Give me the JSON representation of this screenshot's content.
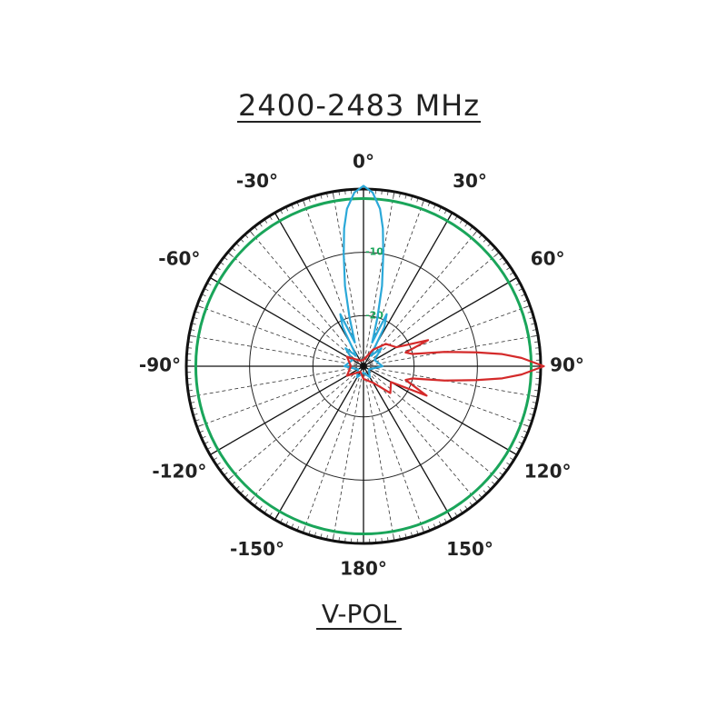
{
  "chart_data": {
    "type": "polar",
    "title": "2400-2483 MHz",
    "subtitle": "V-POL",
    "rlim": [
      -28,
      0
    ],
    "rticks": [
      -20,
      -10
    ],
    "thetaticks": [
      {
        "value": 0,
        "label": "0°"
      },
      {
        "value": 30,
        "label": "30°"
      },
      {
        "value": 60,
        "label": "60°"
      },
      {
        "value": 90,
        "label": "90°"
      },
      {
        "value": 120,
        "label": "120°"
      },
      {
        "value": 150,
        "label": "150°"
      },
      {
        "value": 180,
        "label": "180°"
      },
      {
        "value": -150,
        "label": "-150°"
      },
      {
        "value": -120,
        "label": "-120°"
      },
      {
        "value": -90,
        "label": "-90°"
      },
      {
        "value": -60,
        "label": "-60°"
      },
      {
        "value": -30,
        "label": "-30°"
      }
    ],
    "reference_ring": {
      "value": -1.5,
      "color": "#1aa55a"
    },
    "series": [
      {
        "color": "#2aa8d8",
        "theta": [
          -180,
          -150,
          -120,
          -90,
          -60,
          -45,
          -35,
          -28,
          -24,
          -20,
          -16,
          -13,
          -10,
          -8,
          -6,
          -3,
          0,
          3,
          6,
          8,
          10,
          13,
          16,
          20,
          24,
          28,
          35,
          45,
          60,
          90,
          120,
          150,
          180
        ],
        "values": [
          -27,
          -26,
          -27,
          -25,
          -26,
          -24,
          -26,
          -21,
          -19,
          -24,
          -20,
          -15,
          -10,
          -6,
          -3,
          -0.5,
          0.5,
          -0.5,
          -3,
          -6,
          -10,
          -15,
          -20,
          -24,
          -19,
          -21,
          -26,
          -24,
          -26,
          -25,
          -27,
          -26,
          -27
        ]
      },
      {
        "color": "#d42a2a",
        "theta": [
          0,
          30,
          45,
          60,
          68,
          72,
          76,
          80,
          83,
          85,
          87,
          90,
          93,
          95,
          97,
          100,
          104,
          108,
          115,
          120,
          135,
          150,
          180,
          210,
          240,
          270,
          300,
          330,
          360
        ],
        "values": [
          -27,
          -25,
          -23,
          -22,
          -17,
          -21,
          -20,
          -15,
          -10,
          -6,
          -3,
          0.5,
          -3,
          -6,
          -10,
          -15,
          -20,
          -21,
          -17,
          -23,
          -22,
          -25,
          -26,
          -27,
          -25,
          -26,
          -25,
          -27,
          -27
        ]
      }
    ]
  }
}
